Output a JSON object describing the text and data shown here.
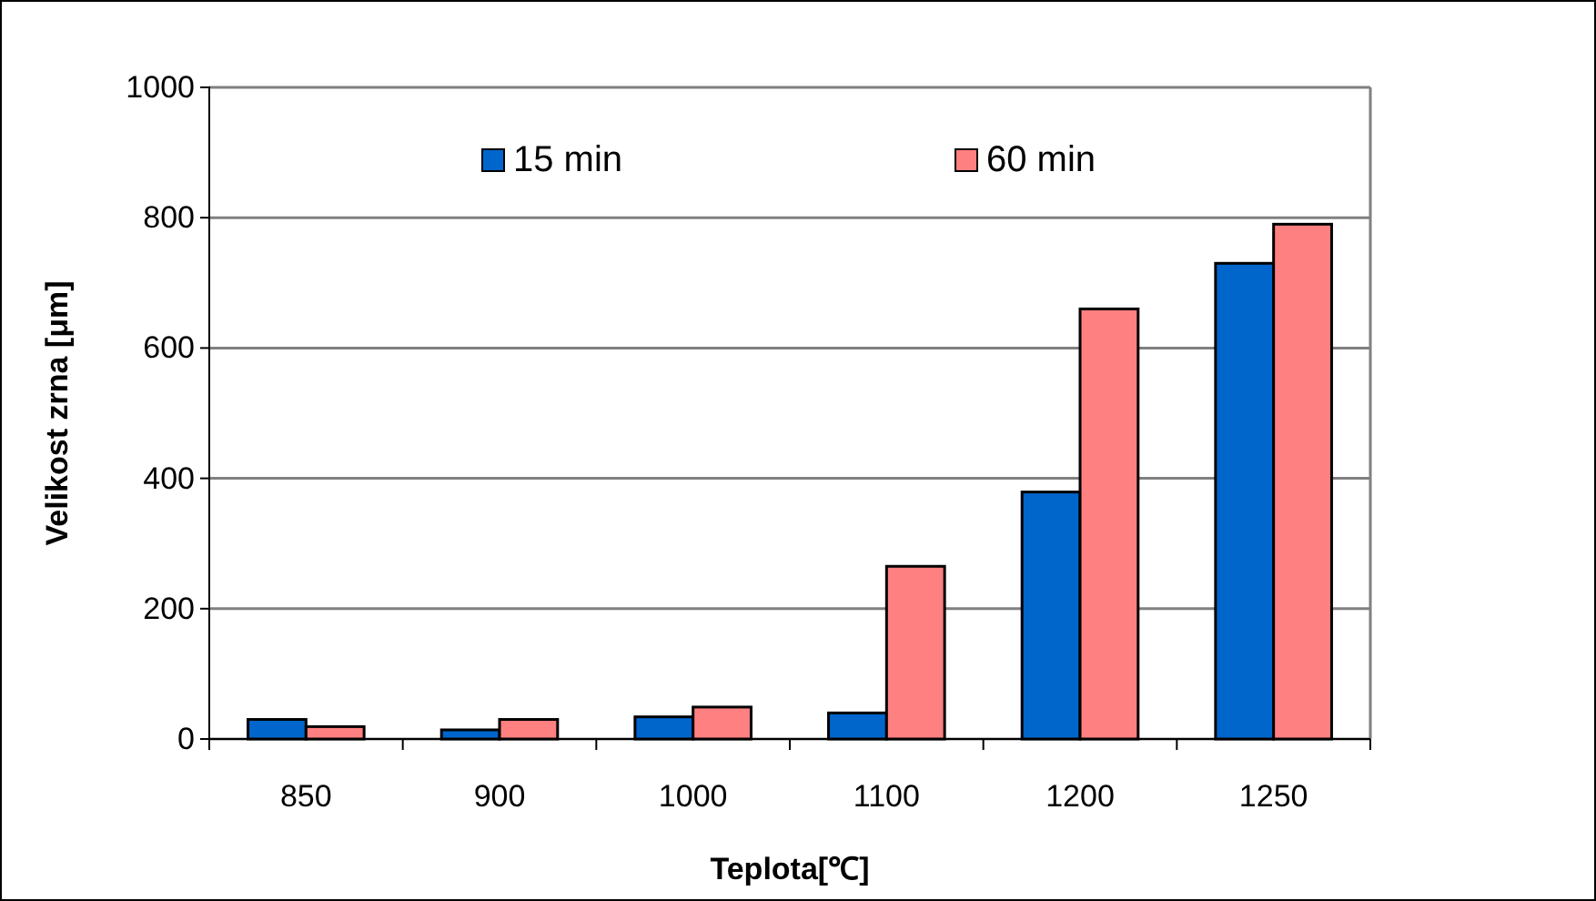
{
  "chart_data": {
    "type": "bar",
    "xlabel": "Teplota[℃]",
    "ylabel": "Velikost zrna [μm]",
    "categories": [
      "850",
      "900",
      "1000",
      "1100",
      "1200",
      "1250"
    ],
    "series": [
      {
        "name": "15 min",
        "color": "#0066cc",
        "values": [
          30,
          14,
          34,
          40,
          379,
          730
        ]
      },
      {
        "name": "60 min",
        "color": "#ff8080",
        "values": [
          19,
          30,
          49,
          265,
          660,
          790
        ]
      }
    ],
    "ylim": [
      0,
      1000
    ],
    "yticks": [
      0,
      200,
      400,
      600,
      800,
      1000
    ],
    "grid": "y",
    "legend": "top"
  }
}
